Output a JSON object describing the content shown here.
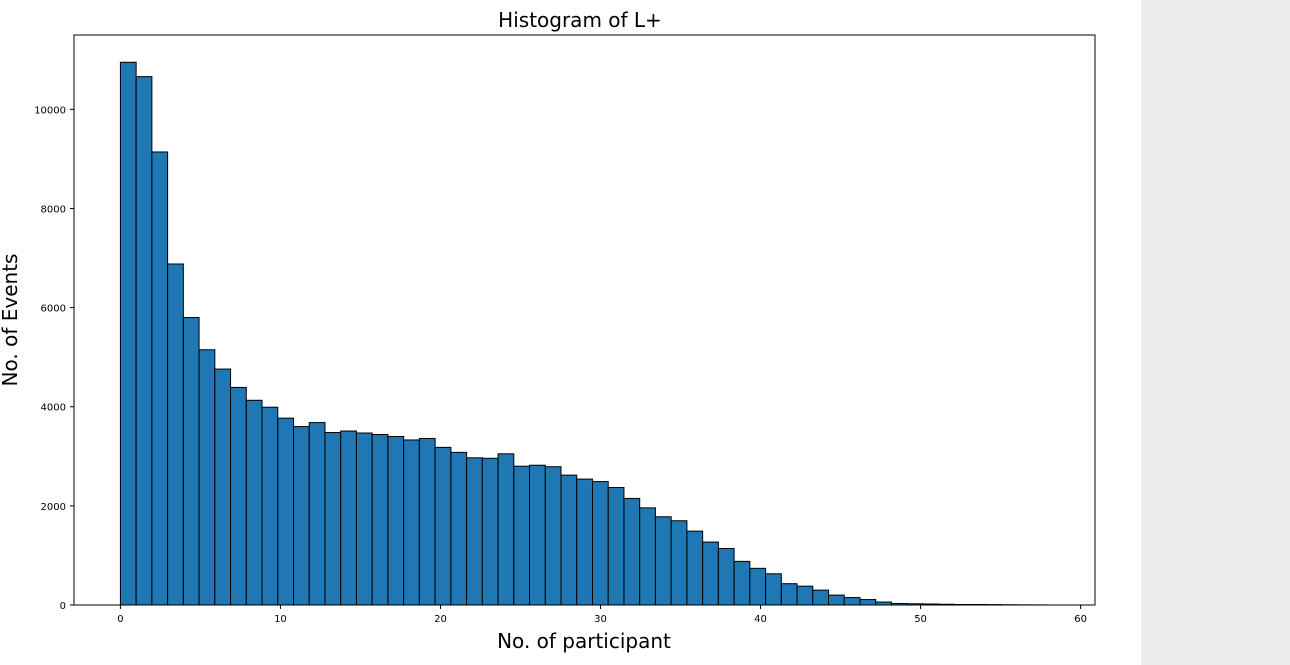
{
  "chart_data": {
    "type": "bar",
    "title": "Histogram of L+",
    "xlabel": "No. of participant",
    "ylabel": "No. of  Events",
    "xlim": [
      -2.9,
      60.9
    ],
    "ylim": [
      0,
      11500
    ],
    "x_ticks": [
      0,
      10,
      20,
      30,
      40,
      50,
      60
    ],
    "y_ticks": [
      0,
      2000,
      4000,
      6000,
      8000,
      10000
    ],
    "bin_start": 0,
    "bin_width": 0.9833,
    "bar_color": "#1f77b4",
    "edge_color": "#000000",
    "grid": false,
    "values": [
      10950,
      10660,
      9140,
      6880,
      5800,
      5150,
      4760,
      4390,
      4130,
      3990,
      3770,
      3600,
      3680,
      3480,
      3510,
      3470,
      3440,
      3400,
      3330,
      3360,
      3180,
      3080,
      2970,
      2960,
      3050,
      2800,
      2820,
      2790,
      2620,
      2540,
      2490,
      2370,
      2150,
      1960,
      1780,
      1700,
      1490,
      1270,
      1140,
      880,
      740,
      630,
      430,
      380,
      300,
      200,
      150,
      110,
      60,
      30,
      25,
      20,
      15,
      10,
      10,
      8,
      5,
      3,
      2
    ]
  },
  "panel_color": "#ebebeb"
}
